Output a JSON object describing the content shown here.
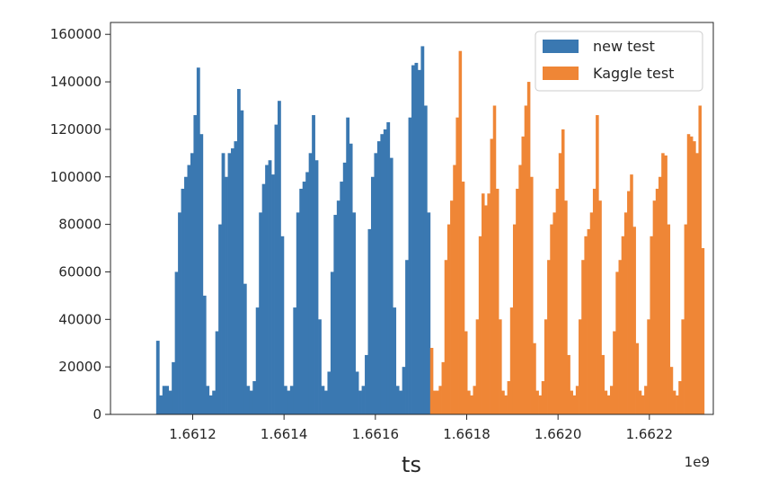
{
  "chart_data": {
    "type": "bar",
    "title": "",
    "xlabel": "ts",
    "ylabel": "",
    "x_offset_label": "1e9",
    "xlim": [
      1.66102,
      1.66234
    ],
    "ylim": [
      0,
      165000
    ],
    "x_ticks": [
      {
        "value": 1.6612,
        "label": "1.6612"
      },
      {
        "value": 1.6614,
        "label": "1.6614"
      },
      {
        "value": 1.6616,
        "label": "1.6616"
      },
      {
        "value": 1.6618,
        "label": "1.6618"
      },
      {
        "value": 1.662,
        "label": "1.6620"
      },
      {
        "value": 1.6622,
        "label": "1.6622"
      }
    ],
    "y_ticks": [
      {
        "value": 0,
        "label": "0"
      },
      {
        "value": 20000,
        "label": "20000"
      },
      {
        "value": 40000,
        "label": "40000"
      },
      {
        "value": 60000,
        "label": "60000"
      },
      {
        "value": 80000,
        "label": "80000"
      },
      {
        "value": 100000,
        "label": "100000"
      },
      {
        "value": 120000,
        "label": "120000"
      },
      {
        "value": 140000,
        "label": "140000"
      },
      {
        "value": 160000,
        "label": "160000"
      }
    ],
    "grid": false,
    "legend_position": "top-right",
    "series": [
      {
        "name": "new test",
        "color": "#3a78b1",
        "x_start": 1.66112,
        "x_end": 1.66172,
        "values": [
          31000,
          8000,
          12000,
          12000,
          10000,
          22000,
          60000,
          85000,
          95000,
          100000,
          105000,
          110000,
          126000,
          146000,
          118000,
          50000,
          12000,
          8000,
          10000,
          35000,
          80000,
          110000,
          100000,
          110000,
          112000,
          115000,
          137000,
          128000,
          55000,
          12000,
          10000,
          14000,
          45000,
          85000,
          97000,
          105000,
          107000,
          101000,
          122000,
          132000,
          75000,
          12000,
          10000,
          12000,
          45000,
          85000,
          95000,
          98000,
          102000,
          110000,
          126000,
          107000,
          40000,
          12000,
          10000,
          18000,
          60000,
          84000,
          90000,
          98000,
          106000,
          125000,
          114000,
          85000,
          18000,
          10000,
          12000,
          25000,
          78000,
          100000,
          110000,
          115000,
          118000,
          120000,
          123000,
          108000,
          45000,
          12000,
          10000,
          20000,
          65000,
          125000,
          147000,
          148000,
          145000,
          155000,
          130000,
          85000
        ]
      },
      {
        "name": "Kaggle test",
        "color": "#ef8636",
        "x_start": 1.66172,
        "x_end": 1.66232,
        "values": [
          28000,
          10000,
          10000,
          12000,
          22000,
          65000,
          80000,
          90000,
          105000,
          125000,
          153000,
          98000,
          35000,
          10000,
          8000,
          12000,
          40000,
          75000,
          93000,
          88000,
          93000,
          116000,
          130000,
          95000,
          40000,
          10000,
          8000,
          14000,
          45000,
          80000,
          95000,
          105000,
          117000,
          130000,
          140000,
          100000,
          30000,
          10000,
          8000,
          14000,
          40000,
          65000,
          80000,
          85000,
          95000,
          110000,
          120000,
          90000,
          25000,
          10000,
          8000,
          12000,
          40000,
          65000,
          75000,
          78000,
          85000,
          95000,
          126000,
          90000,
          25000,
          10000,
          8000,
          12000,
          35000,
          60000,
          65000,
          75000,
          85000,
          94000,
          101000,
          79000,
          30000,
          10000,
          8000,
          12000,
          40000,
          75000,
          90000,
          95000,
          100000,
          110000,
          109000,
          80000,
          20000,
          10000,
          8000,
          14000,
          40000,
          80000,
          118000,
          117000,
          115000,
          110000,
          130000,
          70000
        ]
      }
    ]
  }
}
